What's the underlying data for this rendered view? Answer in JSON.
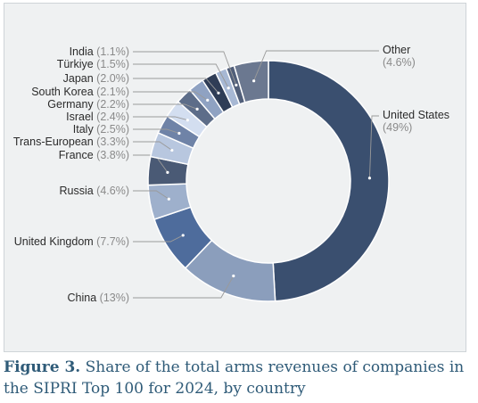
{
  "chart_data": {
    "type": "pie",
    "donut": true,
    "slices": [
      {
        "name": "United States",
        "pct_label": "(49%)",
        "value": 49,
        "color": "#3a4f6f"
      },
      {
        "name": "China",
        "pct_label": "(13%)",
        "value": 13,
        "color": "#8b9ebc"
      },
      {
        "name": "United Kingdom",
        "pct_label": "(7.7%)",
        "value": 7.7,
        "color": "#4e6c9c"
      },
      {
        "name": "Russia",
        "pct_label": "(4.6%)",
        "value": 4.6,
        "color": "#9eb0cc"
      },
      {
        "name": "France",
        "pct_label": "(3.8%)",
        "value": 3.8,
        "color": "#4a5a75"
      },
      {
        "name": "Trans-European",
        "pct_label": "(3.3%)",
        "value": 3.3,
        "color": "#b8c7df"
      },
      {
        "name": "Italy",
        "pct_label": "(2.5%)",
        "value": 2.5,
        "color": "#6f83a7"
      },
      {
        "name": "Israel",
        "pct_label": "(2.4%)",
        "value": 2.4,
        "color": "#d3def0"
      },
      {
        "name": "Germany",
        "pct_label": "(2.2%)",
        "value": 2.2,
        "color": "#5d6d89"
      },
      {
        "name": "South Korea",
        "pct_label": "(2.1%)",
        "value": 2.1,
        "color": "#8fa2c2"
      },
      {
        "name": "Japan",
        "pct_label": "(2.0%)",
        "value": 2.0,
        "color": "#2f3d56"
      },
      {
        "name": "Türkiye",
        "pct_label": "(1.5%)",
        "value": 1.5,
        "color": "#a7b8d4"
      },
      {
        "name": "India",
        "pct_label": "(1.1%)",
        "value": 1.1,
        "color": "#515f7a"
      },
      {
        "name": "Other",
        "pct_label": "(4.6%)",
        "value": 4.6,
        "color": "#6b7890"
      }
    ]
  },
  "caption": {
    "label": "Figure 3.",
    "text": " Share of the total arms revenues of companies in the SIPRI Top 100 for 2024, by country"
  }
}
